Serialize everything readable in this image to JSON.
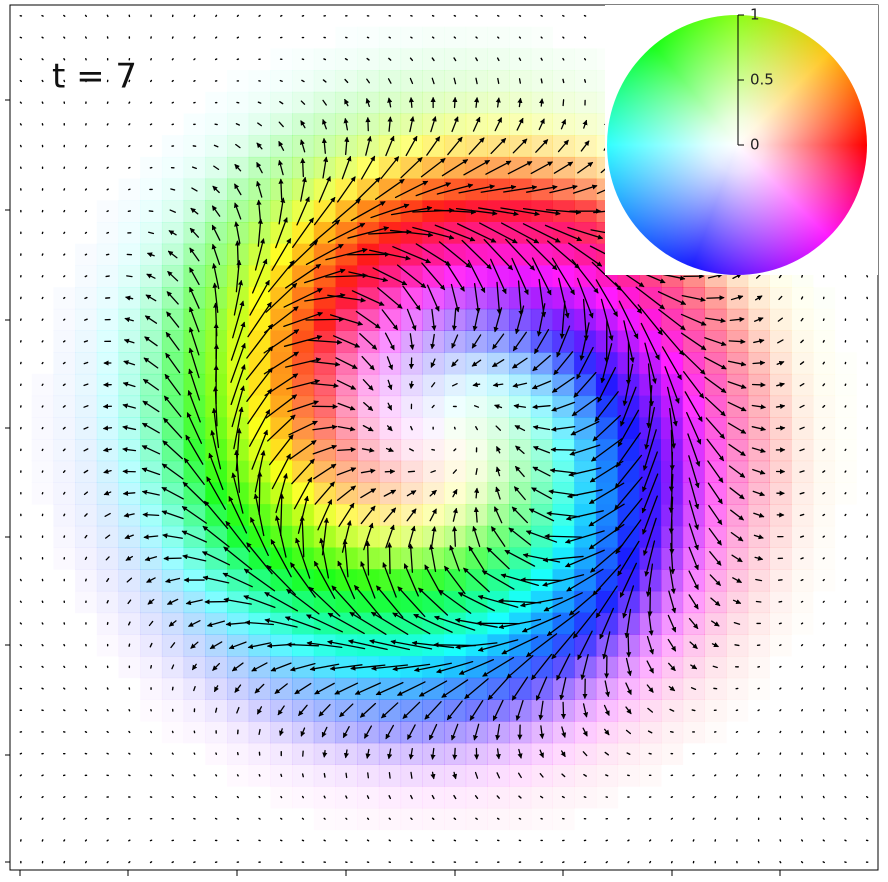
{
  "chart_data": {
    "type": "quiver",
    "annotation": "t = 7",
    "colorbar": {
      "ylim": [
        0,
        1
      ],
      "yticks": [
        0,
        0.5,
        1
      ]
    }
  }
}
